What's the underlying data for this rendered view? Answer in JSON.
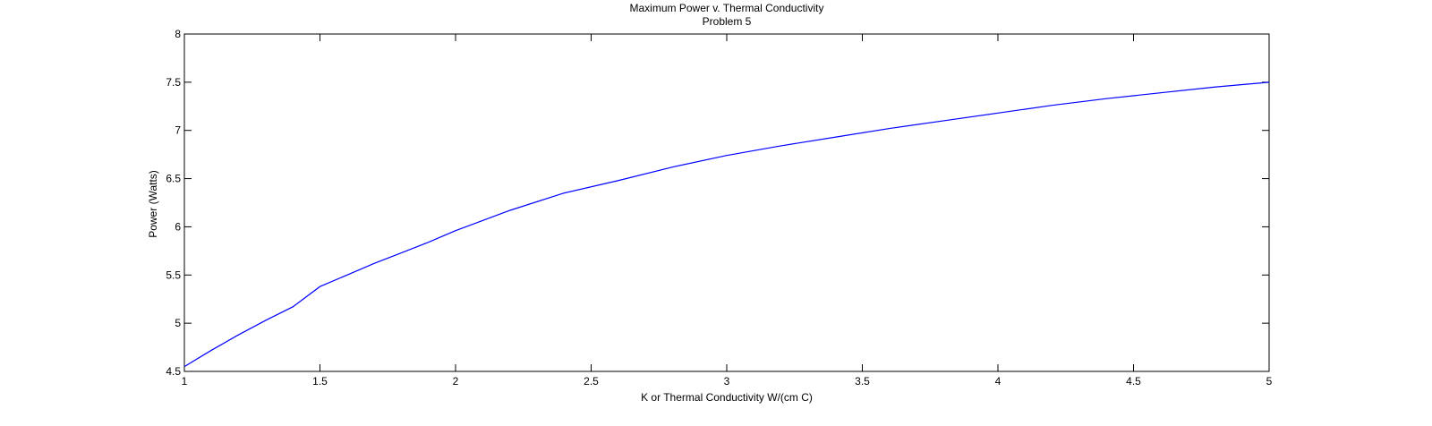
{
  "chart_data": {
    "type": "line",
    "title": "Maximum Power  v. Thermal Conductivity",
    "subtitle": "Problem 5",
    "xlabel": "K or Thermal Conductivity W/(cm C)",
    "ylabel": "Power (Watts)",
    "xlim": [
      1,
      5
    ],
    "ylim": [
      4.5,
      8
    ],
    "xticks": [
      1,
      1.5,
      2,
      2.5,
      3,
      3.5,
      4,
      4.5,
      5
    ],
    "yticks": [
      4.5,
      5,
      5.5,
      6,
      6.5,
      7,
      7.5,
      8
    ],
    "xtick_labels": [
      "1",
      "1.5",
      "2",
      "2.5",
      "3",
      "3.5",
      "4",
      "4.5",
      "5"
    ],
    "ytick_labels": [
      "4.5",
      "5",
      "5.5",
      "6",
      "6.5",
      "7",
      "7.5",
      "8"
    ],
    "grid": false,
    "box": true,
    "series": [
      {
        "color": "#0000ff",
        "x": [
          1.0,
          1.1,
          1.2,
          1.3,
          1.4,
          1.5,
          1.6,
          1.7,
          1.8,
          1.9,
          2.0,
          2.2,
          2.4,
          2.6,
          2.8,
          3.0,
          3.2,
          3.4,
          3.6,
          3.8,
          4.0,
          4.2,
          4.4,
          4.6,
          4.8,
          5.0
        ],
        "y": [
          4.55,
          4.72,
          4.88,
          5.03,
          5.17,
          5.38,
          5.5,
          5.62,
          5.73,
          5.84,
          5.96,
          6.17,
          6.35,
          6.48,
          6.62,
          6.74,
          6.84,
          6.93,
          7.02,
          7.1,
          7.18,
          7.26,
          7.33,
          7.39,
          7.45,
          7.5
        ]
      }
    ]
  }
}
